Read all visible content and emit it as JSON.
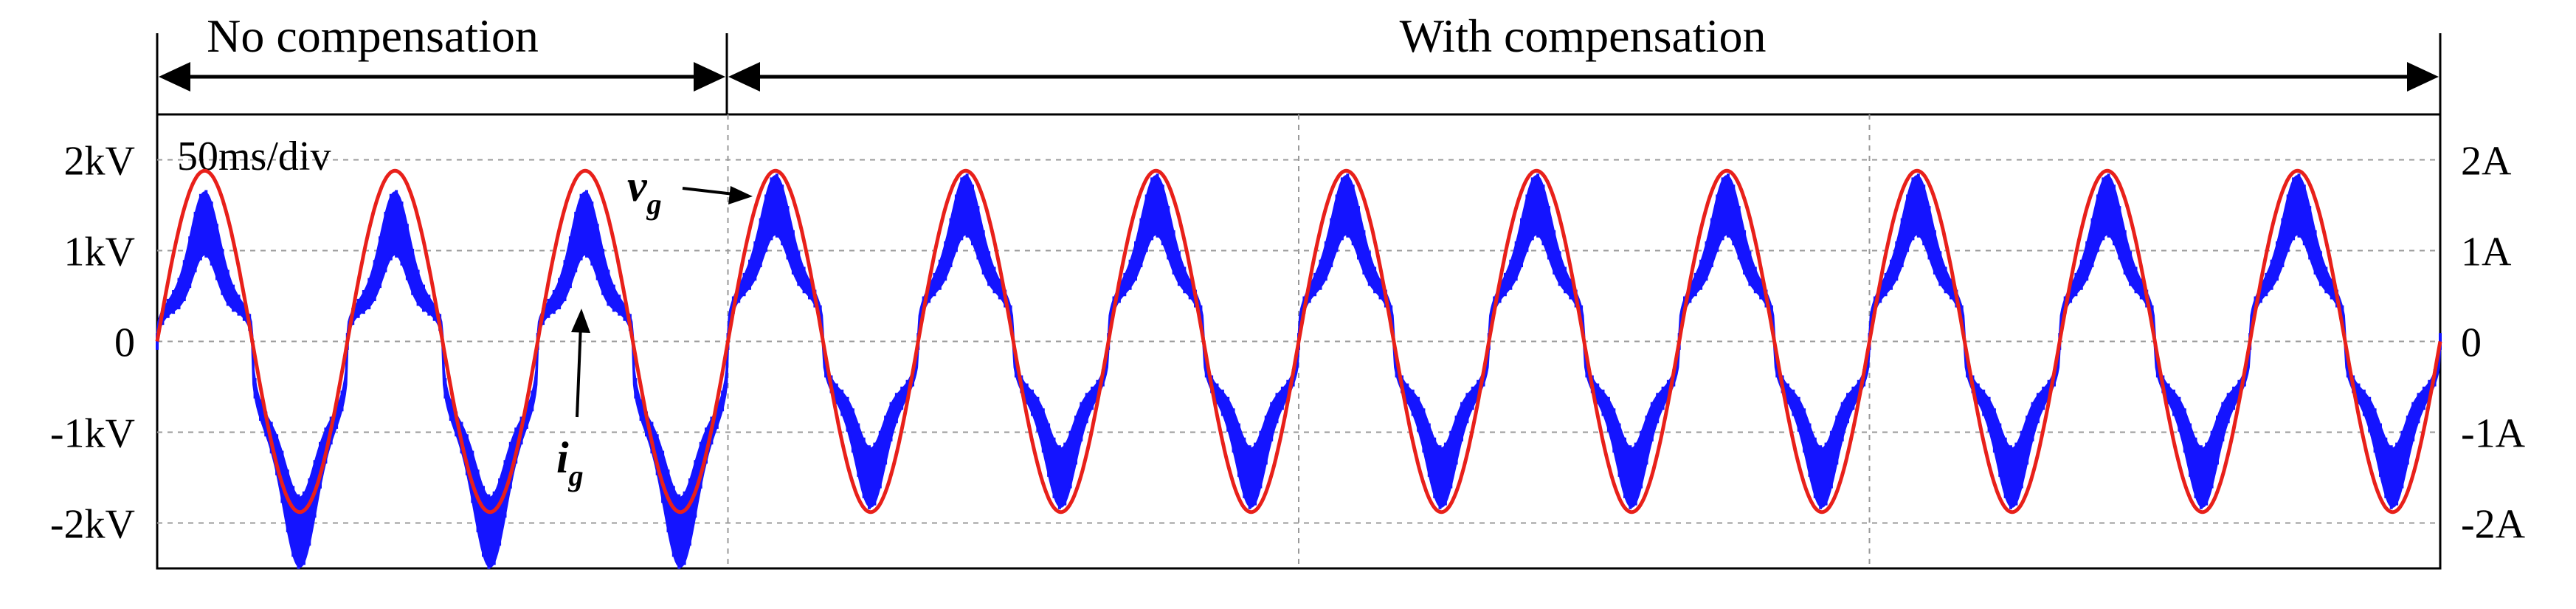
{
  "chart_data": {
    "type": "line",
    "title": "",
    "time_scale": "50ms/div",
    "regions": [
      {
        "label": "No compensation",
        "x_from_div": 0,
        "x_to_div": 3
      },
      {
        "label": "With compensation",
        "x_from_div": 3,
        "x_to_div": 12
      }
    ],
    "x_divisions": 12,
    "grid": true,
    "left_axis": {
      "unit": "kV",
      "range": [
        -2.5,
        2.5
      ],
      "ticks": [
        2,
        1,
        0,
        -1,
        -2
      ],
      "tick_labels": [
        "2kV",
        "1kV",
        "0",
        "-1kV",
        "-2kV"
      ]
    },
    "right_axis": {
      "unit": "A",
      "range": [
        -2.5,
        2.5
      ],
      "ticks": [
        2,
        1,
        0,
        -1,
        -2
      ],
      "tick_labels": [
        "2A",
        "1A",
        "0",
        "-1A",
        "-2A"
      ]
    },
    "series": [
      {
        "name": "v_g",
        "label_main": "v",
        "label_sub": "g",
        "color": "#e8201a",
        "axis": "left",
        "amplitude_kv": 1.88,
        "cycles": 12
      },
      {
        "name": "i_g",
        "label_main": "i",
        "label_sub": "g",
        "color": "#1414ff",
        "axis": "right",
        "cycles": 12,
        "no_compensation": {
          "cycles": 3,
          "peak_positive_a": 1.3,
          "peak_negative_a": -2.1,
          "shoulder_a": 0.55
        },
        "with_compensation": {
          "cycles": 9,
          "peak_a": 1.5,
          "shoulder_a": 0.8
        }
      }
    ]
  }
}
